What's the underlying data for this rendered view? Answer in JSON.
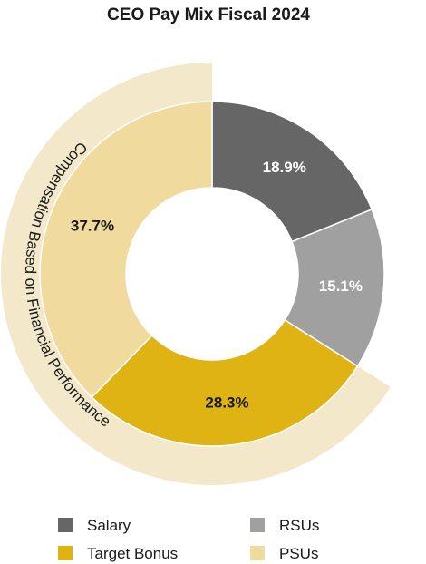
{
  "chart_data": {
    "type": "pie",
    "title": "CEO Pay Mix Fiscal 2024",
    "slices": [
      {
        "label": "Salary",
        "value": 18.9,
        "display": "18.9%",
        "color": "#666666",
        "label_color": "#ffffff"
      },
      {
        "label": "RSUs",
        "value": 15.1,
        "display": "15.1%",
        "color": "#a0a0a0",
        "label_color": "#ffffff"
      },
      {
        "label": "Target Bonus",
        "value": 28.3,
        "display": "28.3%",
        "color": "#deb313",
        "label_color": "#1a1a1a"
      },
      {
        "label": "PSUs",
        "value": 37.7,
        "display": "37.7%",
        "color": "#f1da9e",
        "label_color": "#1a1a1a"
      }
    ],
    "outer_band": {
      "label": "Compensation Based on Financial Performance",
      "color": "#f4e8cb",
      "covers": [
        "Target Bonus",
        "PSUs"
      ]
    },
    "legend": {
      "placement": "bottom",
      "items": [
        {
          "label": "Salary",
          "color": "#666666"
        },
        {
          "label": "RSUs",
          "color": "#a0a0a0"
        },
        {
          "label": "Target Bonus",
          "color": "#deb313"
        },
        {
          "label": "PSUs",
          "color": "#f1da9e"
        }
      ]
    }
  }
}
